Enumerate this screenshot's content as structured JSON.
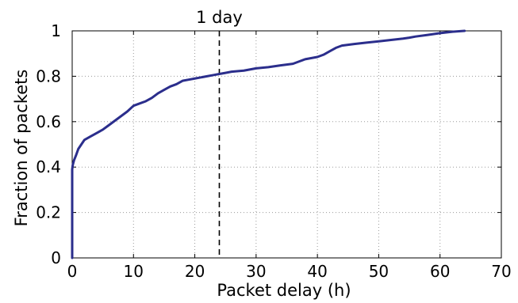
{
  "chart_data": {
    "type": "line",
    "xlabel": "Packet delay (h)",
    "ylabel": "Fraction of packets",
    "xlim": [
      0,
      70
    ],
    "ylim": [
      0,
      1
    ],
    "xticks": [
      "0",
      "10",
      "20",
      "30",
      "40",
      "50",
      "60",
      "70"
    ],
    "yticks": [
      "0",
      "0.2",
      "0.4",
      "0.6",
      "0.8",
      "1"
    ],
    "grid": true,
    "legend": "none",
    "colors": {
      "series": "#2B2E8C",
      "reference": "#000000",
      "grid": "#9a9a9a"
    },
    "reference_line": {
      "x": 24,
      "label": "1 day",
      "style": "dashed"
    },
    "series": [
      {
        "x": [
          0,
          0,
          0.1,
          0.3,
          0.6,
          1,
          1.5,
          2,
          3,
          4,
          5,
          6,
          7,
          8,
          9,
          10,
          11,
          12,
          13,
          14,
          15,
          16,
          17,
          18,
          19,
          20,
          21,
          22,
          23,
          24,
          25,
          26,
          28,
          30,
          32,
          34,
          36,
          37,
          38,
          40,
          41,
          42,
          43,
          44,
          46,
          48,
          50,
          52,
          54,
          55,
          56,
          58,
          60,
          62,
          64
        ],
        "y": [
          0,
          0.39,
          0.41,
          0.43,
          0.45,
          0.48,
          0.5,
          0.52,
          0.535,
          0.55,
          0.565,
          0.585,
          0.605,
          0.625,
          0.645,
          0.67,
          0.68,
          0.69,
          0.705,
          0.725,
          0.74,
          0.755,
          0.765,
          0.78,
          0.785,
          0.79,
          0.795,
          0.8,
          0.805,
          0.81,
          0.815,
          0.82,
          0.825,
          0.835,
          0.84,
          0.848,
          0.855,
          0.865,
          0.875,
          0.885,
          0.895,
          0.91,
          0.925,
          0.935,
          0.942,
          0.948,
          0.954,
          0.96,
          0.966,
          0.97,
          0.975,
          0.982,
          0.99,
          0.996,
          1.0
        ]
      }
    ]
  }
}
